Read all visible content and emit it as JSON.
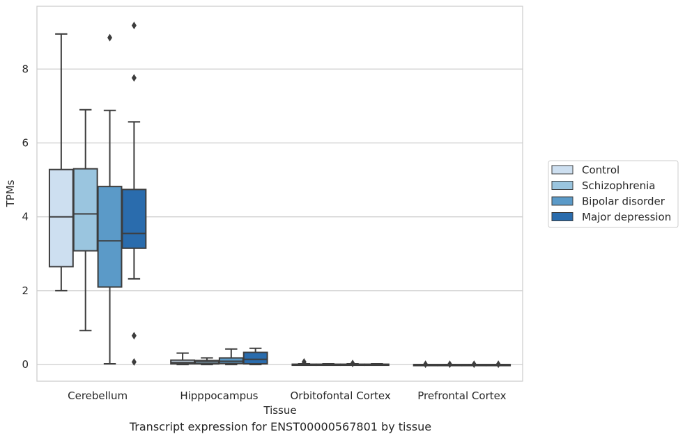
{
  "chart_data": {
    "type": "box",
    "title": "",
    "caption": "Transcript expression for ENST00000567801 by tissue",
    "xlabel": "Tissue",
    "ylabel": "TPMs",
    "ylim": [
      -0.45,
      9.7
    ],
    "yticks": [
      0,
      2,
      4,
      6,
      8
    ],
    "grid": true,
    "legend_position": "right",
    "categories": [
      "Cerebellum",
      "Hipppocampus",
      "Orbitofontal Cortex",
      "Prefrontal Cortex"
    ],
    "series": [
      {
        "name": "Control",
        "color": "#cddff0",
        "boxes": [
          {
            "whislo": 2.0,
            "q1": 2.65,
            "med": 4.0,
            "q3": 5.28,
            "whishi": 8.95,
            "fliers": []
          },
          {
            "whislo": 0.0,
            "q1": 0.02,
            "med": 0.06,
            "q3": 0.12,
            "whishi": 0.31,
            "fliers": []
          },
          {
            "whislo": 0.0,
            "q1": 0.0,
            "med": 0.0,
            "q3": 0.01,
            "whishi": 0.02,
            "fliers": [
              0.07
            ]
          },
          {
            "whislo": 0.0,
            "q1": 0.0,
            "med": 0.0,
            "q3": 0.0,
            "whishi": 0.0,
            "fliers": [
              0.01
            ]
          }
        ]
      },
      {
        "name": "Schizophrenia",
        "color": "#9ac5df",
        "boxes": [
          {
            "whislo": 0.92,
            "q1": 3.08,
            "med": 4.08,
            "q3": 5.3,
            "whishi": 6.9,
            "fliers": []
          },
          {
            "whislo": 0.0,
            "q1": 0.02,
            "med": 0.07,
            "q3": 0.11,
            "whishi": 0.18,
            "fliers": []
          },
          {
            "whislo": 0.0,
            "q1": 0.0,
            "med": 0.0,
            "q3": 0.01,
            "whishi": 0.02,
            "fliers": []
          },
          {
            "whislo": 0.0,
            "q1": 0.0,
            "med": 0.0,
            "q3": 0.0,
            "whishi": 0.0,
            "fliers": [
              0.01
            ]
          }
        ]
      },
      {
        "name": "Bipolar disorder",
        "color": "#5b9ac8",
        "boxes": [
          {
            "whislo": 0.02,
            "q1": 2.1,
            "med": 3.35,
            "q3": 4.82,
            "whishi": 6.88,
            "fliers": [
              8.85
            ]
          },
          {
            "whislo": 0.0,
            "q1": 0.03,
            "med": 0.09,
            "q3": 0.18,
            "whishi": 0.42,
            "fliers": []
          },
          {
            "whislo": 0.0,
            "q1": 0.0,
            "med": 0.0,
            "q3": 0.01,
            "whishi": 0.02,
            "fliers": [
              0.03
            ]
          },
          {
            "whislo": 0.0,
            "q1": 0.0,
            "med": 0.0,
            "q3": 0.0,
            "whishi": 0.0,
            "fliers": [
              0.01
            ]
          }
        ]
      },
      {
        "name": "Major depression",
        "color": "#2a6cad",
        "boxes": [
          {
            "whislo": 2.32,
            "q1": 3.15,
            "med": 3.55,
            "q3": 4.74,
            "whishi": 6.57,
            "fliers": [
              9.18,
              7.76,
              0.78,
              0.07
            ]
          },
          {
            "whislo": 0.0,
            "q1": 0.02,
            "med": 0.14,
            "q3": 0.33,
            "whishi": 0.44,
            "fliers": []
          },
          {
            "whislo": 0.0,
            "q1": 0.0,
            "med": 0.0,
            "q3": 0.01,
            "whishi": 0.02,
            "fliers": []
          },
          {
            "whislo": 0.0,
            "q1": 0.0,
            "med": 0.0,
            "q3": 0.0,
            "whishi": 0.0,
            "fliers": [
              0.01
            ]
          }
        ]
      }
    ]
  }
}
